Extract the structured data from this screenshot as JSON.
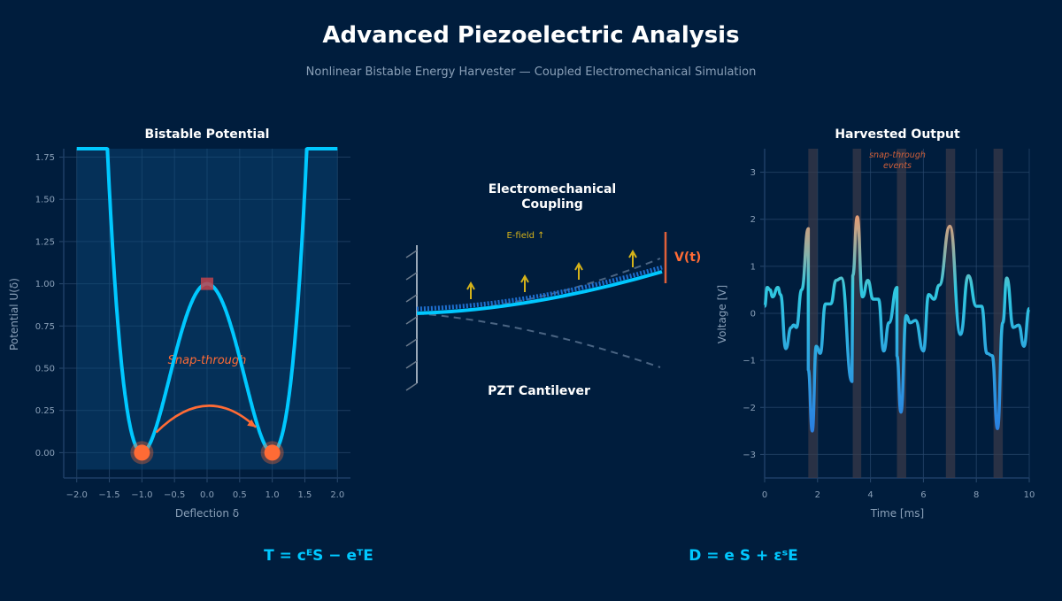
{
  "title": "Advanced Piezoelectric Analysis",
  "subtitle": "Nonlinear Bistable Energy Harvester — Coupled Electromechanical Simulation",
  "colors": {
    "background": "#001d3d",
    "curve": "#00c8ff",
    "accent": "#ff6b35",
    "field": "#d4b21a",
    "barrier": "#c0444e"
  },
  "equations": {
    "left": "T = cᴱS − eᵀE",
    "right": "D = e S + εˢE"
  },
  "diagram": {
    "title_line1": "Electromechanical",
    "title_line2": "Coupling",
    "efield_label": "E-field ↑",
    "voltage_label": "V(t)",
    "caption": "PZT Cantilever"
  },
  "chart_data": [
    {
      "type": "line",
      "title": "Bistable Potential",
      "xlabel": "Deflection δ",
      "ylabel": "Potential U(δ)",
      "function": "U = (δ² − 1)²",
      "xlim": [
        -2.2,
        2.2
      ],
      "ylim": [
        -0.15,
        1.8
      ],
      "xticks": [
        -2.0,
        -1.5,
        -1.0,
        -0.5,
        0.0,
        0.5,
        1.0,
        1.5,
        2.0
      ],
      "xtick_labels": [
        "−2.0",
        "−1.5",
        "−1.0",
        "−0.5",
        "0.0",
        "0.5",
        "1.0",
        "1.5",
        "2.0"
      ],
      "yticks": [
        0.0,
        0.25,
        0.5,
        0.75,
        1.0,
        1.25,
        1.5,
        1.75
      ],
      "ytick_labels": [
        "0.00",
        "0.25",
        "0.50",
        "0.75",
        "1.00",
        "1.25",
        "1.50",
        "1.75"
      ],
      "stable_points": [
        [
          -1,
          0
        ],
        [
          1,
          0
        ]
      ],
      "barrier_point": [
        0,
        1
      ],
      "annotation": "Snap-through",
      "grid": true
    },
    {
      "type": "line",
      "title": "Harvested Output",
      "xlabel": "Time [ms]",
      "ylabel": "Voltage [V]",
      "xlim": [
        0,
        10
      ],
      "ylim": [
        -3.5,
        3.5
      ],
      "xticks": [
        0,
        2,
        4,
        6,
        8,
        10
      ],
      "xtick_labels": [
        "0",
        "2",
        "4",
        "6",
        "8",
        "10"
      ],
      "yticks": [
        -3,
        -2,
        -1,
        0,
        1,
        2,
        3
      ],
      "ytick_labels": [
        "−3",
        "−2",
        "−1",
        "0",
        "1",
        "2",
        "3"
      ],
      "annotation_line1": "snap-through",
      "annotation_line2": "events",
      "event_bands": [
        [
          1.65,
          2.0
        ],
        [
          3.33,
          3.65
        ],
        [
          5.0,
          5.35
        ],
        [
          6.85,
          7.2
        ],
        [
          8.65,
          9.0
        ]
      ],
      "x": [
        0,
        0.1,
        0.2,
        0.3,
        0.5,
        0.6,
        0.8,
        1.0,
        1.1,
        1.2,
        1.4,
        1.65,
        1.65,
        1.8,
        1.95,
        2.1,
        2.3,
        2.5,
        2.7,
        2.9,
        3.3,
        3.33,
        3.5,
        3.7,
        3.9,
        4.1,
        4.3,
        4.5,
        4.7,
        5.0,
        5.0,
        5.15,
        5.35,
        5.5,
        5.7,
        6.0,
        6.2,
        6.4,
        6.6,
        7.0,
        7.4,
        7.7,
        8.0,
        8.2,
        8.4,
        8.6,
        8.8,
        9.0,
        9.15,
        9.4,
        9.6,
        9.8,
        10
      ],
      "y": [
        0.15,
        0.55,
        0.5,
        0.35,
        0.55,
        0.4,
        -0.75,
        -0.3,
        -0.25,
        -0.3,
        0.5,
        1.8,
        -1.2,
        -2.5,
        -0.7,
        -0.85,
        0.2,
        0.2,
        0.7,
        0.75,
        -1.45,
        0.8,
        2.05,
        0.35,
        0.7,
        0.3,
        0.3,
        -0.8,
        -0.2,
        0.55,
        -0.9,
        -2.1,
        -0.05,
        -0.2,
        -0.15,
        -0.8,
        0.4,
        0.3,
        0.6,
        1.85,
        -0.45,
        0.8,
        0.15,
        0.15,
        -0.85,
        -0.9,
        -2.45,
        -0.2,
        0.75,
        -0.3,
        -0.25,
        -0.7,
        0.1
      ],
      "grid": true
    }
  ]
}
